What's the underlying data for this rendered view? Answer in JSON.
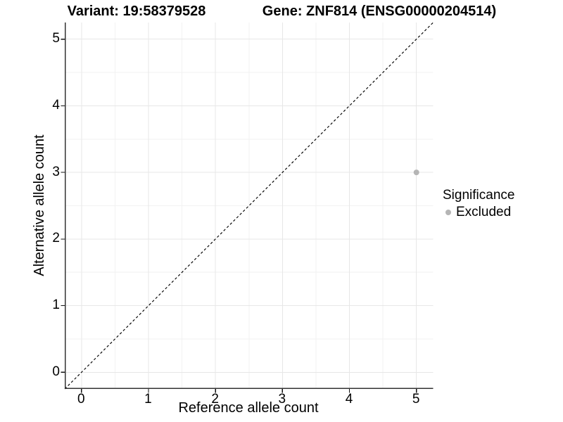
{
  "chart_data": {
    "type": "scatter",
    "title_left": "Variant: 19:58379528",
    "title_right": "Gene: ZNF814 (ENSG00000204514)",
    "xlabel": "Reference allele count",
    "ylabel": "Alternative allele count",
    "xlim": [
      -0.25,
      5.25
    ],
    "ylim": [
      -0.25,
      5.25
    ],
    "x_ticks": [
      0,
      1,
      2,
      3,
      4,
      5
    ],
    "y_ticks": [
      0,
      1,
      2,
      3,
      4,
      5
    ],
    "grid": "major and minor gridlines on, white background",
    "points": [
      {
        "x": 5,
        "y": 3,
        "series": "Excluded"
      }
    ],
    "identity_line": {
      "from": [
        -0.25,
        -0.25
      ],
      "to": [
        5.25,
        5.25
      ],
      "style": "dashed",
      "color": "#000000"
    },
    "legend": {
      "title": "Significance",
      "position": "right",
      "items": [
        {
          "label": "Excluded",
          "color": "#b5b5b5"
        }
      ]
    },
    "colors": {
      "point": "#b5b5b5",
      "grid_major": "#e7e7e7",
      "grid_minor": "#f2f2f2",
      "axis": "#333333",
      "tick_mark": "#111111",
      "text": "#000000",
      "background": "#ffffff"
    }
  }
}
